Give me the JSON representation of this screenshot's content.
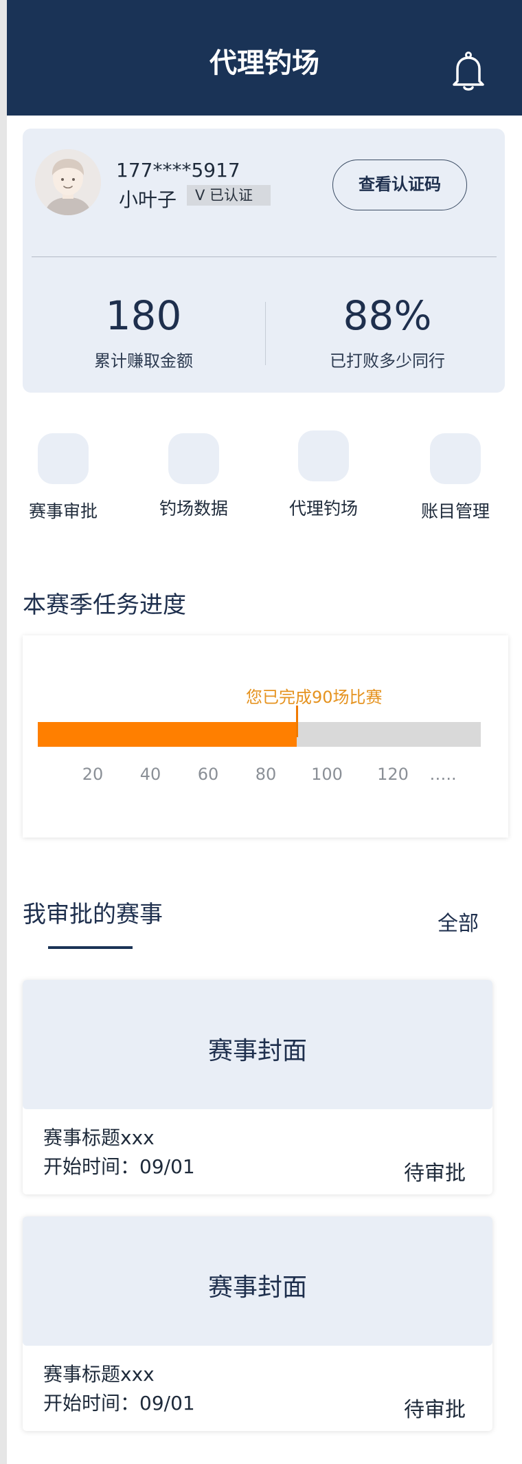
{
  "header": {
    "title": "代理钓场",
    "bell_icon": "bell-icon"
  },
  "profile": {
    "phone": "177****5917",
    "nickname": "小叶子",
    "verified_label": "V 已认证",
    "auth_button": "查看认证码",
    "stats": [
      {
        "value": "180",
        "label": "累计赚取金额"
      },
      {
        "value": "88%",
        "label": "已打败多少同行"
      }
    ]
  },
  "quick_actions": [
    {
      "label": "赛事审批",
      "icon": "approval-icon"
    },
    {
      "label": "钓场数据",
      "icon": "data-icon"
    },
    {
      "label": "代理钓场",
      "icon": "agency-icon"
    },
    {
      "label": "账目管理",
      "icon": "accounts-icon"
    }
  ],
  "progress": {
    "title": "本赛季任务进度",
    "note": "您已完成90场比赛",
    "completed": 90,
    "ticks": [
      "20",
      "40",
      "60",
      "80",
      "100",
      "120",
      "….."
    ],
    "colors": {
      "fill": "#ff7f00",
      "track": "#d9d9d9",
      "note": "#e59320"
    }
  },
  "events_section": {
    "title": "我审批的赛事",
    "all_link": "全部",
    "events": [
      {
        "cover": "赛事封面",
        "title": "赛事标题xxx",
        "start_time": "开始时间：09/01",
        "status": "待审批"
      },
      {
        "cover": "赛事封面",
        "title": "赛事标题xxx",
        "start_time": "开始时间：09/01",
        "status": "待审批"
      }
    ]
  },
  "colors": {
    "primary": "#1a3356",
    "card_bg": "#e9eef6"
  }
}
